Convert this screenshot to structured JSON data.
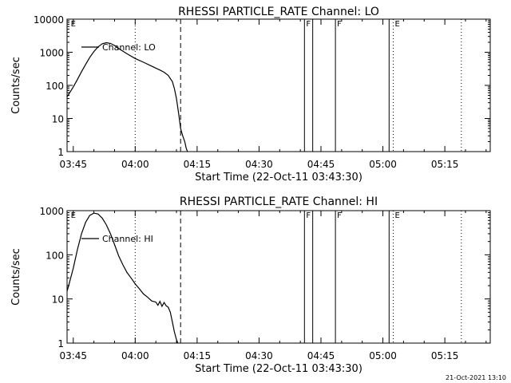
{
  "chart_data": [
    {
      "type": "line",
      "title": "RHESSI PARTICLE_RATE Channel: LO",
      "xlabel": "Start Time (22-Oct-11 03:43:30)",
      "ylabel": "Counts/sec",
      "y_scale": "log",
      "ylim": [
        1,
        10000
      ],
      "y_ticks": [
        {
          "value": 1,
          "label": "1"
        },
        {
          "value": 10,
          "label": "10"
        },
        {
          "value": 100,
          "label": "100"
        },
        {
          "value": 1000,
          "label": "1000"
        },
        {
          "value": 10000,
          "label": "10000"
        }
      ],
      "xlim": [
        "03:43:30",
        "05:26:00"
      ],
      "x_ticks": [
        "03:45",
        "04:00",
        "04:15",
        "04:30",
        "04:45",
        "05:00",
        "05:15"
      ],
      "legend": {
        "placement": "top-left",
        "label": "Channel: LO"
      },
      "series": [
        {
          "name": "Channel: LO",
          "x": [
            "03:43:30",
            "03:45:00",
            "03:46:00",
            "03:47:00",
            "03:48:00",
            "03:49:00",
            "03:50:00",
            "03:51:00",
            "03:52:00",
            "03:53:00",
            "03:54:00",
            "03:55:00",
            "03:56:00",
            "03:58:00",
            "04:00:00",
            "04:02:00",
            "04:04:00",
            "04:06:00",
            "04:07:00",
            "04:08:00",
            "04:09:00",
            "04:09:30",
            "04:10:00",
            "04:10:30",
            "04:11:00",
            "04:11:30",
            "04:12:00",
            "04:12:20",
            "04:12:40"
          ],
          "y": [
            45,
            90,
            150,
            260,
            430,
            700,
            1050,
            1450,
            1800,
            1950,
            1850,
            1600,
            1300,
            900,
            650,
            500,
            380,
            290,
            250,
            200,
            130,
            80,
            40,
            15,
            5,
            3,
            2,
            1.3,
            1
          ]
        }
      ],
      "vlines": [
        {
          "x": "04:00:00",
          "style": "dotted"
        },
        {
          "x": "04:11:00",
          "style": "dashed"
        },
        {
          "x": "04:41:00",
          "style": "solid"
        },
        {
          "x": "04:43:00",
          "style": "solid"
        },
        {
          "x": "04:48:30",
          "style": "solid"
        },
        {
          "x": "05:01:30",
          "style": "solid"
        },
        {
          "x": "05:02:30",
          "style": "dotted"
        },
        {
          "x": "05:19:00",
          "style": "dotted"
        }
      ],
      "annotations": [
        {
          "text": "E",
          "x": "03:44:00",
          "anchor": "start"
        },
        {
          "text": "F",
          "x": "04:41:00",
          "anchor": "start"
        },
        {
          "text": "F",
          "x": "04:48:30",
          "anchor": "start"
        },
        {
          "text": "E",
          "x": "05:02:30",
          "anchor": "start"
        }
      ]
    },
    {
      "type": "line",
      "title": "RHESSI PARTICLE_RATE Channel: HI",
      "xlabel": "Start Time (22-Oct-11 03:43:30)",
      "ylabel": "Counts/sec",
      "y_scale": "log",
      "ylim": [
        1,
        1000
      ],
      "y_ticks": [
        {
          "value": 1,
          "label": "1"
        },
        {
          "value": 10,
          "label": "10"
        },
        {
          "value": 100,
          "label": "100"
        },
        {
          "value": 1000,
          "label": "1000"
        }
      ],
      "xlim": [
        "03:43:30",
        "05:26:00"
      ],
      "x_ticks": [
        "03:45",
        "04:00",
        "04:15",
        "04:30",
        "04:45",
        "05:00",
        "05:15"
      ],
      "legend": {
        "placement": "top-left",
        "label": "Channel: HI"
      },
      "series": [
        {
          "name": "Channel: HI",
          "x": [
            "03:43:30",
            "03:44:00",
            "03:45:00",
            "03:46:00",
            "03:47:00",
            "03:48:00",
            "03:49:00",
            "03:50:00",
            "03:51:00",
            "03:52:00",
            "03:53:00",
            "03:54:00",
            "03:55:00",
            "03:56:00",
            "03:57:00",
            "03:58:00",
            "03:59:00",
            "04:00:00",
            "04:01:00",
            "04:02:00",
            "04:03:00",
            "04:04:00",
            "04:05:00",
            "04:05:30",
            "04:06:00",
            "04:06:30",
            "04:07:00",
            "04:07:30",
            "04:08:00",
            "04:08:30",
            "04:09:00",
            "04:09:30",
            "04:10:00",
            "04:10:20"
          ],
          "y": [
            15,
            22,
            50,
            130,
            300,
            550,
            780,
            880,
            840,
            680,
            480,
            300,
            170,
            95,
            60,
            40,
            30,
            22,
            17,
            13,
            11,
            9,
            8.5,
            7.2,
            8.8,
            6.8,
            8.3,
            7.0,
            6.5,
            5,
            3,
            1.8,
            1.2,
            1
          ]
        }
      ],
      "vlines": [
        {
          "x": "04:00:00",
          "style": "dotted"
        },
        {
          "x": "04:11:00",
          "style": "dashed"
        },
        {
          "x": "04:41:00",
          "style": "solid"
        },
        {
          "x": "04:43:00",
          "style": "solid"
        },
        {
          "x": "04:48:30",
          "style": "solid"
        },
        {
          "x": "05:01:30",
          "style": "solid"
        },
        {
          "x": "05:02:30",
          "style": "dotted"
        },
        {
          "x": "05:19:00",
          "style": "dotted"
        }
      ],
      "annotations": [
        {
          "text": "E",
          "x": "03:44:00",
          "anchor": "start"
        },
        {
          "text": "F",
          "x": "04:41:00",
          "anchor": "start"
        },
        {
          "text": "F",
          "x": "04:48:30",
          "anchor": "start"
        },
        {
          "text": "E",
          "x": "05:02:30",
          "anchor": "start"
        }
      ]
    }
  ],
  "footer": {
    "timestamp": "21-Oct-2021 13:10"
  }
}
